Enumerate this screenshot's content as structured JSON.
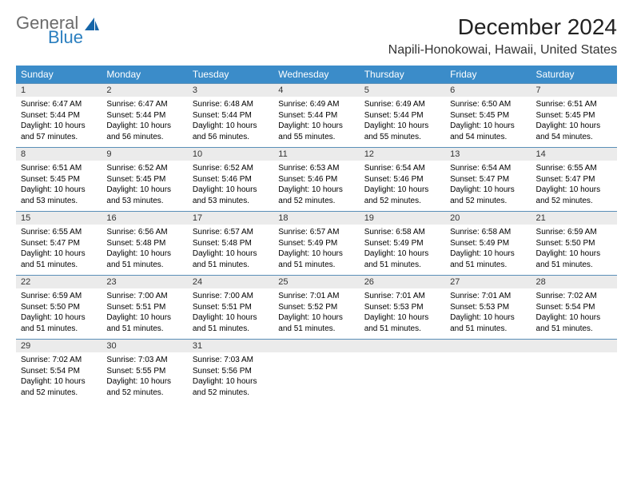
{
  "logo": {
    "general": "General",
    "blue": "Blue"
  },
  "title": "December 2024",
  "location": "Napili-Honokowai, Hawaii, United States",
  "colors": {
    "header_bg": "#3b8cc9",
    "header_text": "#ffffff",
    "daynum_bg": "#ebebeb",
    "row_border": "#5a8fb8",
    "logo_gray": "#6b6b6b",
    "logo_blue": "#2b7fbf"
  },
  "weekdays": [
    "Sunday",
    "Monday",
    "Tuesday",
    "Wednesday",
    "Thursday",
    "Friday",
    "Saturday"
  ],
  "weeks": [
    [
      {
        "n": "1",
        "sunrise": "6:47 AM",
        "sunset": "5:44 PM",
        "dl": "10 hours and 57 minutes."
      },
      {
        "n": "2",
        "sunrise": "6:47 AM",
        "sunset": "5:44 PM",
        "dl": "10 hours and 56 minutes."
      },
      {
        "n": "3",
        "sunrise": "6:48 AM",
        "sunset": "5:44 PM",
        "dl": "10 hours and 56 minutes."
      },
      {
        "n": "4",
        "sunrise": "6:49 AM",
        "sunset": "5:44 PM",
        "dl": "10 hours and 55 minutes."
      },
      {
        "n": "5",
        "sunrise": "6:49 AM",
        "sunset": "5:44 PM",
        "dl": "10 hours and 55 minutes."
      },
      {
        "n": "6",
        "sunrise": "6:50 AM",
        "sunset": "5:45 PM",
        "dl": "10 hours and 54 minutes."
      },
      {
        "n": "7",
        "sunrise": "6:51 AM",
        "sunset": "5:45 PM",
        "dl": "10 hours and 54 minutes."
      }
    ],
    [
      {
        "n": "8",
        "sunrise": "6:51 AM",
        "sunset": "5:45 PM",
        "dl": "10 hours and 53 minutes."
      },
      {
        "n": "9",
        "sunrise": "6:52 AM",
        "sunset": "5:45 PM",
        "dl": "10 hours and 53 minutes."
      },
      {
        "n": "10",
        "sunrise": "6:52 AM",
        "sunset": "5:46 PM",
        "dl": "10 hours and 53 minutes."
      },
      {
        "n": "11",
        "sunrise": "6:53 AM",
        "sunset": "5:46 PM",
        "dl": "10 hours and 52 minutes."
      },
      {
        "n": "12",
        "sunrise": "6:54 AM",
        "sunset": "5:46 PM",
        "dl": "10 hours and 52 minutes."
      },
      {
        "n": "13",
        "sunrise": "6:54 AM",
        "sunset": "5:47 PM",
        "dl": "10 hours and 52 minutes."
      },
      {
        "n": "14",
        "sunrise": "6:55 AM",
        "sunset": "5:47 PM",
        "dl": "10 hours and 52 minutes."
      }
    ],
    [
      {
        "n": "15",
        "sunrise": "6:55 AM",
        "sunset": "5:47 PM",
        "dl": "10 hours and 51 minutes."
      },
      {
        "n": "16",
        "sunrise": "6:56 AM",
        "sunset": "5:48 PM",
        "dl": "10 hours and 51 minutes."
      },
      {
        "n": "17",
        "sunrise": "6:57 AM",
        "sunset": "5:48 PM",
        "dl": "10 hours and 51 minutes."
      },
      {
        "n": "18",
        "sunrise": "6:57 AM",
        "sunset": "5:49 PM",
        "dl": "10 hours and 51 minutes."
      },
      {
        "n": "19",
        "sunrise": "6:58 AM",
        "sunset": "5:49 PM",
        "dl": "10 hours and 51 minutes."
      },
      {
        "n": "20",
        "sunrise": "6:58 AM",
        "sunset": "5:49 PM",
        "dl": "10 hours and 51 minutes."
      },
      {
        "n": "21",
        "sunrise": "6:59 AM",
        "sunset": "5:50 PM",
        "dl": "10 hours and 51 minutes."
      }
    ],
    [
      {
        "n": "22",
        "sunrise": "6:59 AM",
        "sunset": "5:50 PM",
        "dl": "10 hours and 51 minutes."
      },
      {
        "n": "23",
        "sunrise": "7:00 AM",
        "sunset": "5:51 PM",
        "dl": "10 hours and 51 minutes."
      },
      {
        "n": "24",
        "sunrise": "7:00 AM",
        "sunset": "5:51 PM",
        "dl": "10 hours and 51 minutes."
      },
      {
        "n": "25",
        "sunrise": "7:01 AM",
        "sunset": "5:52 PM",
        "dl": "10 hours and 51 minutes."
      },
      {
        "n": "26",
        "sunrise": "7:01 AM",
        "sunset": "5:53 PM",
        "dl": "10 hours and 51 minutes."
      },
      {
        "n": "27",
        "sunrise": "7:01 AM",
        "sunset": "5:53 PM",
        "dl": "10 hours and 51 minutes."
      },
      {
        "n": "28",
        "sunrise": "7:02 AM",
        "sunset": "5:54 PM",
        "dl": "10 hours and 51 minutes."
      }
    ],
    [
      {
        "n": "29",
        "sunrise": "7:02 AM",
        "sunset": "5:54 PM",
        "dl": "10 hours and 52 minutes."
      },
      {
        "n": "30",
        "sunrise": "7:03 AM",
        "sunset": "5:55 PM",
        "dl": "10 hours and 52 minutes."
      },
      {
        "n": "31",
        "sunrise": "7:03 AM",
        "sunset": "5:56 PM",
        "dl": "10 hours and 52 minutes."
      },
      null,
      null,
      null,
      null
    ]
  ],
  "labels": {
    "sunrise": "Sunrise:",
    "sunset": "Sunset:",
    "daylight": "Daylight:"
  }
}
